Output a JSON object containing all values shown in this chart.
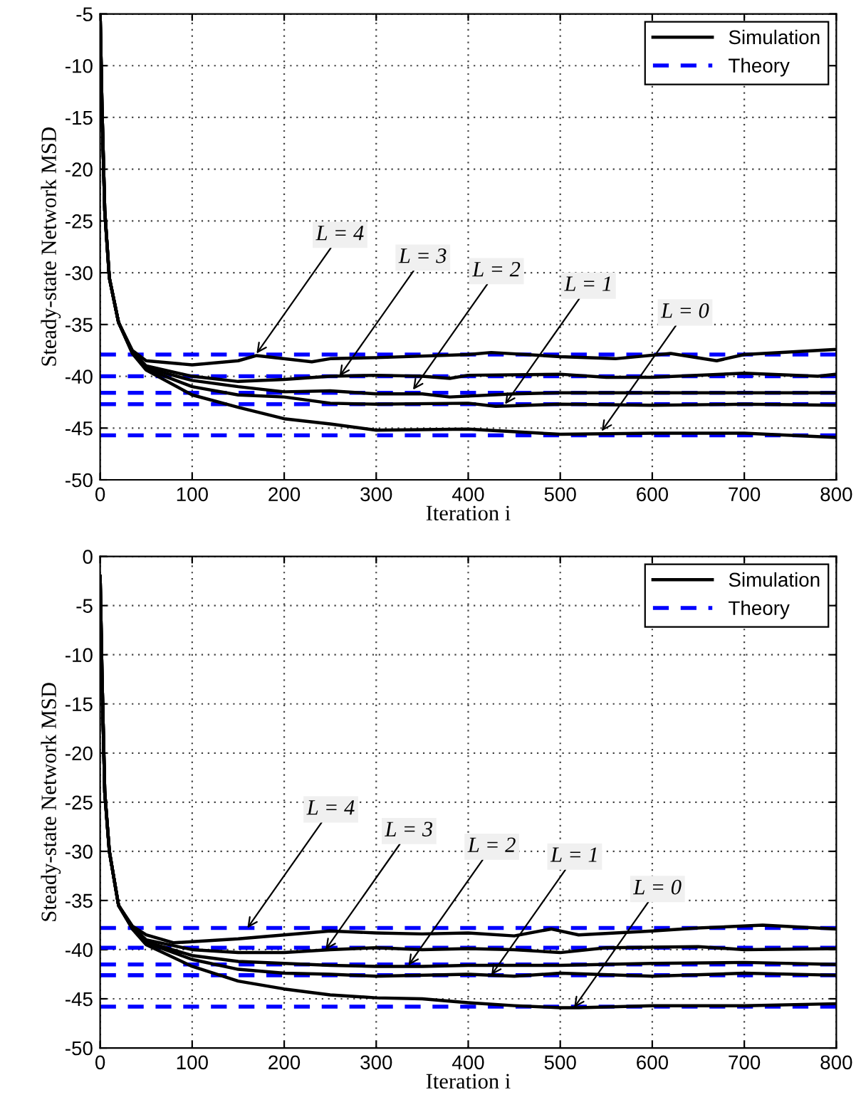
{
  "chart_data": [
    {
      "type": "line",
      "xlabel": "Iteration i",
      "ylabel": "Steady-state Network MSD",
      "xlim": [
        0,
        800
      ],
      "ylim": [
        -50,
        -5
      ],
      "xticks": [
        0,
        100,
        200,
        300,
        400,
        500,
        600,
        700,
        800
      ],
      "yticks": [
        -50,
        -45,
        -40,
        -35,
        -30,
        -25,
        -20,
        -15,
        -10,
        -5
      ],
      "grid": true,
      "legend": "top right",
      "marker": "none",
      "series": [
        {
          "name": "Simulation",
          "color": "#000000",
          "line_style": "solid",
          "x": [
            0,
            2,
            5,
            10,
            20,
            35,
            50,
            100,
            150,
            170,
            230,
            250,
            300,
            400,
            425,
            500,
            560,
            620,
            670,
            700,
            800
          ],
          "values": [
            -5,
            -14,
            -24,
            -30.5,
            -34.8,
            -37.5,
            -38.5,
            -38.9,
            -38.5,
            -38.0,
            -38.6,
            -38.3,
            -38.2,
            -37.9,
            -37.7,
            -38.1,
            -38.3,
            -37.8,
            -38.5,
            -37.9,
            -37.4
          ]
        },
        {
          "color": "#000000",
          "line_style": "solid",
          "x": [
            0,
            2,
            5,
            10,
            20,
            35,
            50,
            100,
            150,
            200,
            250,
            300,
            350,
            380,
            400,
            500,
            550,
            600,
            700,
            780,
            800
          ],
          "values": [
            -5,
            -14,
            -24,
            -30.5,
            -34.8,
            -37.6,
            -39.0,
            -40.0,
            -40.5,
            -40.3,
            -40.0,
            -39.9,
            -40.0,
            -40.2,
            -39.9,
            -39.8,
            -40.1,
            -40.1,
            -39.7,
            -40.0,
            -39.8
          ]
        },
        {
          "color": "#000000",
          "line_style": "solid",
          "x": [
            0,
            2,
            5,
            10,
            20,
            35,
            50,
            100,
            150,
            200,
            250,
            300,
            350,
            380,
            450,
            500,
            600,
            700,
            800
          ],
          "values": [
            -5,
            -14,
            -24,
            -30.5,
            -34.8,
            -37.7,
            -39.2,
            -40.4,
            -41.0,
            -41.5,
            -41.4,
            -41.7,
            -41.7,
            -42.0,
            -41.7,
            -41.6,
            -41.6,
            -41.6,
            -41.6
          ]
        },
        {
          "color": "#000000",
          "line_style": "solid",
          "x": [
            0,
            2,
            5,
            10,
            20,
            35,
            50,
            100,
            150,
            200,
            250,
            300,
            400,
            430,
            500,
            600,
            700,
            800
          ],
          "values": [
            -5,
            -14,
            -24,
            -30.5,
            -34.8,
            -37.7,
            -39.3,
            -41.0,
            -41.8,
            -42.0,
            -42.6,
            -42.7,
            -42.6,
            -42.9,
            -42.7,
            -42.8,
            -42.7,
            -42.8
          ]
        },
        {
          "color": "#000000",
          "line_style": "solid",
          "x": [
            0,
            2,
            5,
            10,
            20,
            35,
            50,
            100,
            150,
            200,
            250,
            300,
            400,
            500,
            600,
            700,
            800
          ],
          "values": [
            -5,
            -14,
            -24,
            -30.5,
            -34.8,
            -37.8,
            -39.4,
            -41.8,
            -43.0,
            -44.1,
            -44.6,
            -45.2,
            -45.1,
            -45.6,
            -45.5,
            -45.5,
            -45.9
          ]
        },
        {
          "name": "Theory",
          "color": "#0000ff",
          "line_style": "dashed",
          "x": [
            0,
            800
          ],
          "values": [
            -37.9,
            -37.9
          ]
        },
        {
          "color": "#0000ff",
          "line_style": "dashed",
          "x": [
            0,
            800
          ],
          "values": [
            -40.0,
            -40.0
          ]
        },
        {
          "color": "#0000ff",
          "line_style": "dashed",
          "x": [
            0,
            800
          ],
          "values": [
            -41.6,
            -41.6
          ]
        },
        {
          "color": "#0000ff",
          "line_style": "dashed",
          "x": [
            0,
            800
          ],
          "values": [
            -42.7,
            -42.7
          ]
        },
        {
          "color": "#0000ff",
          "line_style": "dashed",
          "x": [
            0,
            800
          ],
          "values": [
            -45.7,
            -45.7
          ]
        }
      ],
      "annotations": [
        {
          "text": "L = 4",
          "x": 170,
          "y": -37.8
        },
        {
          "text": "L = 3",
          "x": 260,
          "y": -40.0
        },
        {
          "text": "L = 2",
          "x": 340,
          "y": -41.3
        },
        {
          "text": "L = 1",
          "x": 440,
          "y": -42.7
        },
        {
          "text": "L = 0",
          "x": 545,
          "y": -45.3
        }
      ]
    },
    {
      "type": "line",
      "xlabel": "Iteration i",
      "ylabel": "Steady-state Network MSD",
      "xlim": [
        0,
        800
      ],
      "ylim": [
        -50,
        0
      ],
      "xticks": [
        0,
        100,
        200,
        300,
        400,
        500,
        600,
        700,
        800
      ],
      "yticks": [
        -50,
        -45,
        -40,
        -35,
        -30,
        -25,
        -20,
        -15,
        -10,
        -5,
        0
      ],
      "grid": true,
      "legend": "top right",
      "marker": "none",
      "series": [
        {
          "name": "Simulation",
          "color": "#000000",
          "line_style": "solid",
          "x": [
            0,
            2,
            5,
            10,
            20,
            35,
            50,
            80,
            150,
            200,
            250,
            300,
            350,
            400,
            450,
            490,
            520,
            600,
            650,
            720,
            800
          ],
          "values": [
            -2,
            -12,
            -24,
            -30,
            -35.5,
            -37.6,
            -38.5,
            -39.3,
            -38.9,
            -38.5,
            -38.1,
            -38.3,
            -38.4,
            -38.3,
            -38.6,
            -37.9,
            -38.5,
            -38.1,
            -37.8,
            -37.5,
            -37.9
          ]
        },
        {
          "color": "#000000",
          "line_style": "solid",
          "x": [
            0,
            2,
            5,
            10,
            20,
            35,
            50,
            100,
            150,
            200,
            250,
            300,
            350,
            400,
            450,
            500,
            550,
            650,
            700,
            800
          ],
          "values": [
            -2,
            -12,
            -24,
            -30,
            -35.5,
            -37.7,
            -39.0,
            -40.0,
            -40.3,
            -40.3,
            -40.0,
            -39.8,
            -40.0,
            -39.9,
            -40.0,
            -40.3,
            -39.8,
            -39.7,
            -40.0,
            -39.9
          ]
        },
        {
          "color": "#000000",
          "line_style": "solid",
          "x": [
            0,
            2,
            5,
            10,
            20,
            35,
            50,
            100,
            150,
            200,
            250,
            300,
            350,
            400,
            500,
            600,
            700,
            800
          ],
          "values": [
            -2,
            -12,
            -24,
            -30,
            -35.5,
            -37.8,
            -39.2,
            -40.6,
            -41.2,
            -41.4,
            -41.6,
            -41.7,
            -41.7,
            -41.6,
            -41.6,
            -41.4,
            -41.3,
            -41.5
          ]
        },
        {
          "color": "#000000",
          "line_style": "solid",
          "x": [
            0,
            2,
            5,
            10,
            20,
            35,
            50,
            100,
            150,
            200,
            250,
            300,
            400,
            450,
            500,
            600,
            700,
            800
          ],
          "values": [
            -2,
            -12,
            -24,
            -30,
            -35.5,
            -37.8,
            -39.3,
            -41.0,
            -42.0,
            -42.4,
            -42.5,
            -42.7,
            -42.5,
            -42.7,
            -42.4,
            -42.7,
            -42.4,
            -42.6
          ]
        },
        {
          "color": "#000000",
          "line_style": "solid",
          "x": [
            0,
            2,
            5,
            10,
            20,
            35,
            50,
            100,
            150,
            200,
            250,
            300,
            350,
            400,
            450,
            500,
            520,
            600,
            700,
            800
          ],
          "values": [
            -2,
            -12,
            -24,
            -30,
            -35.5,
            -37.9,
            -39.5,
            -41.7,
            -43.2,
            -44.0,
            -44.6,
            -44.9,
            -45.0,
            -45.4,
            -45.7,
            -45.9,
            -45.9,
            -45.7,
            -45.7,
            -45.5
          ]
        },
        {
          "name": "Theory",
          "color": "#0000ff",
          "line_style": "dashed",
          "x": [
            0,
            800
          ],
          "values": [
            -37.8,
            -37.8
          ]
        },
        {
          "color": "#0000ff",
          "line_style": "dashed",
          "x": [
            0,
            800
          ],
          "values": [
            -39.8,
            -39.8
          ]
        },
        {
          "color": "#0000ff",
          "line_style": "dashed",
          "x": [
            0,
            800
          ],
          "values": [
            -41.5,
            -41.5
          ]
        },
        {
          "color": "#0000ff",
          "line_style": "dashed",
          "x": [
            0,
            800
          ],
          "values": [
            -42.6,
            -42.6
          ]
        },
        {
          "color": "#0000ff",
          "line_style": "dashed",
          "x": [
            0,
            800
          ],
          "values": [
            -45.8,
            -45.8
          ]
        }
      ],
      "annotations": [
        {
          "text": "L = 4",
          "x": 160,
          "y": -37.8
        },
        {
          "text": "L = 3",
          "x": 245,
          "y": -40.0
        },
        {
          "text": "L = 2",
          "x": 335,
          "y": -41.6
        },
        {
          "text": "L = 1",
          "x": 425,
          "y": -42.6
        },
        {
          "text": "L = 0",
          "x": 515,
          "y": -45.9
        }
      ]
    }
  ]
}
